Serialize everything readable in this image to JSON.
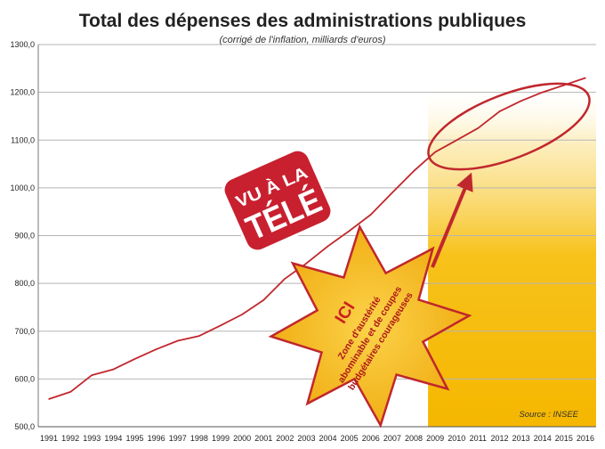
{
  "chart_data": {
    "type": "line",
    "title": "Total des dépenses des administrations publiques",
    "subtitle": "(corrigé de l'inflation, milliards d'euros)",
    "xlabel": "",
    "ylabel": "",
    "x": [
      "1991",
      "1992",
      "1993",
      "1994",
      "1995",
      "1996",
      "1997",
      "1998",
      "1999",
      "2000",
      "2001",
      "2002",
      "2003",
      "2004",
      "2005",
      "2006",
      "2007",
      "2008",
      "2009",
      "2010",
      "2011",
      "2012",
      "2013",
      "2014",
      "2015",
      "2016"
    ],
    "ylim": [
      500,
      1300
    ],
    "yticks": [
      "500,0",
      "600,0",
      "700,0",
      "800,0",
      "900,0",
      "1000,0",
      "1100,0",
      "1200,0",
      "1300,0"
    ],
    "grid": true,
    "series": [
      {
        "color": "#c0272d",
        "values": [
          558,
          573,
          608,
          620,
          642,
          662,
          680,
          690,
          712,
          735,
          765,
          810,
          842,
          878,
          910,
          944,
          990,
          1035,
          1075,
          1100,
          1125,
          1160,
          1182,
          1200,
          1215,
          1230
        ]
      }
    ],
    "highlight": {
      "from": "2009",
      "to": "2016",
      "color": "#f7c21b"
    },
    "source": "Source : INSEE"
  },
  "badge": {
    "line1": "VU À LA",
    "line2": "TÉLÉ",
    "color": "#c8202f"
  },
  "starburst": {
    "title": "ICI",
    "lines": [
      "Zone d'austérité",
      "abominable et de coupes",
      "budgétaires courageuses"
    ],
    "fill": "#f5bb17",
    "stroke": "#c0272d"
  },
  "annotation_color": "#c0272d"
}
